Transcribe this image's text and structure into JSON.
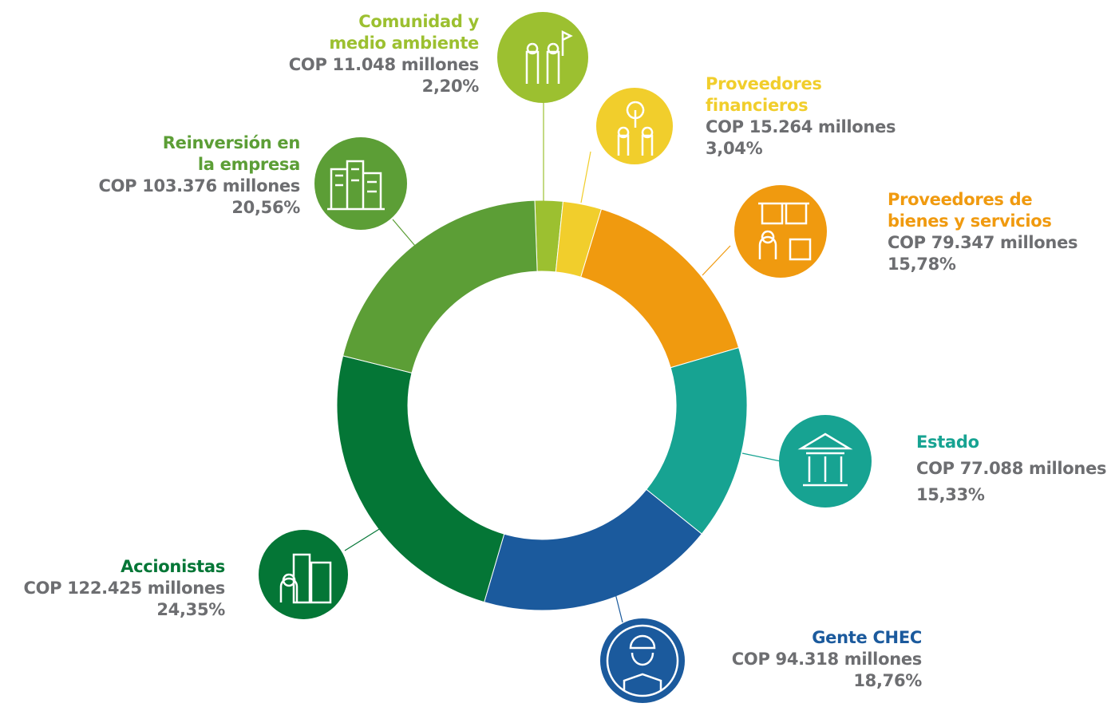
{
  "chart_data": {
    "type": "donut",
    "categories": [
      "Comunidad y\nmedio ambiente",
      "Proveedores\nfinancieros",
      "Proveedores de\nbienes y servicios",
      "Estado",
      "Gente CHEC",
      "Accionistas",
      "Reinversión en\nla empresa"
    ],
    "amount_labels": [
      "COP 11.048 millones",
      "COP 15.264 millones",
      "COP 79.347 millones",
      "COP 77.088 millones",
      "COP 94.318 millones",
      "COP 122.425 millones",
      "COP 103.376 millones"
    ],
    "values": [
      2.2,
      3.04,
      15.78,
      15.33,
      18.76,
      24.35,
      20.56
    ],
    "value_labels": [
      "2,20%",
      "3,04%",
      "15,78%",
      "15,33%",
      "18,76%",
      "24,35%",
      "20,56%"
    ],
    "colors": [
      "#9cc030",
      "#f1ce2c",
      "#f09a0f",
      "#17a392",
      "#1b5a9d",
      "#047636",
      "#5c9e36"
    ]
  }
}
